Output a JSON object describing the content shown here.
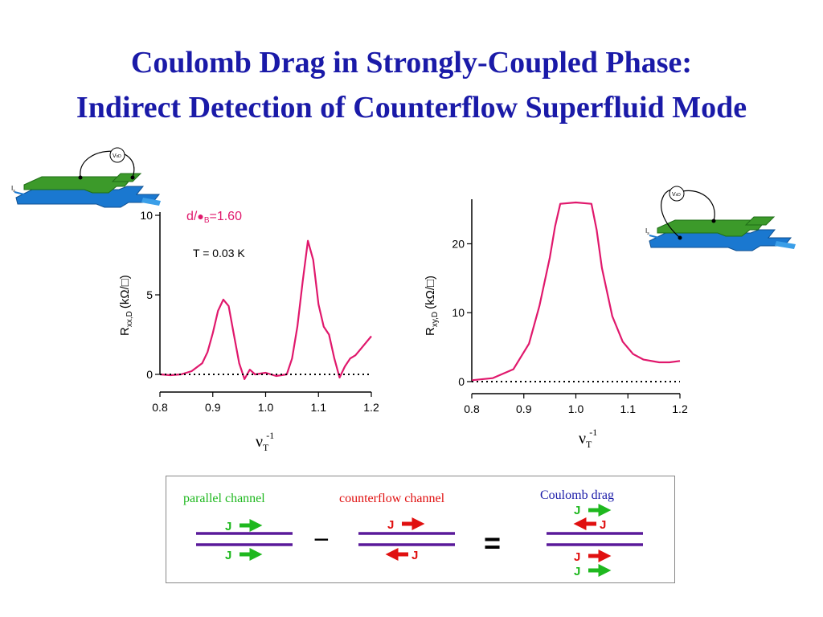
{
  "slide": {
    "title_line1": "Coulomb Drag in Strongly-Coupled Phase:",
    "title_line2": "Indirect Detection of Counterflow Superfluid Mode"
  },
  "device_labels": {
    "current": "I",
    "current_sub": "s",
    "voltage": "V",
    "voltage_sub": "xD"
  },
  "plot_left": {
    "ylabel_R": "R",
    "ylabel_sub": "xx,D",
    "ylabel_unit": "(kΩ/□)",
    "xlabel_nu": "ν",
    "xlabel_sub": "T",
    "xlabel_sup": "-1",
    "annotation_d": "d/",
    "annotation_dot": "●",
    "annotation_sub": "B",
    "annotation_val": "=1.60",
    "annotation_T": "T = 0.03 K"
  },
  "plot_right": {
    "ylabel_R": "R",
    "ylabel_sub": "xy,D",
    "ylabel_unit": "(kΩ/□)",
    "xlabel_nu": "ν",
    "xlabel_sub": "T",
    "xlabel_sup": "-1"
  },
  "chart_data": [
    {
      "type": "line",
      "xlabel": "νT-1",
      "ylabel": "Rxx,D (kΩ/□)",
      "xlim": [
        0.8,
        1.2
      ],
      "ylim": [
        0,
        10
      ],
      "xticks": [
        "0.8",
        "0.9",
        "1.0",
        "1.1",
        "1.2"
      ],
      "yticks": [
        "0",
        "5",
        "10"
      ],
      "series": [
        {
          "color": "#e0186c",
          "x": [
            0.8,
            0.82,
            0.84,
            0.86,
            0.88,
            0.89,
            0.9,
            0.91,
            0.92,
            0.93,
            0.94,
            0.95,
            0.96,
            0.97,
            0.98,
            1.0,
            1.02,
            1.04,
            1.05,
            1.06,
            1.07,
            1.08,
            1.09,
            1.1,
            1.11,
            1.12,
            1.13,
            1.14,
            1.15,
            1.16,
            1.17,
            1.18,
            1.19,
            1.2
          ],
          "y": [
            0.0,
            -0.05,
            0.0,
            0.2,
            0.7,
            1.4,
            2.6,
            4.0,
            4.7,
            4.3,
            2.5,
            0.7,
            -0.3,
            0.3,
            0.0,
            0.1,
            -0.1,
            0.0,
            1.0,
            3.0,
            5.8,
            8.4,
            7.2,
            4.4,
            3.0,
            2.5,
            1.0,
            -0.2,
            0.5,
            1.0,
            1.2,
            1.6,
            2.0,
            2.4
          ]
        },
        {
          "name": "",
          "style": "dotted",
          "color": "#000000",
          "x": [
            0.8,
            1.2
          ],
          "y": [
            0,
            0
          ]
        }
      ]
    },
    {
      "type": "line",
      "xlabel": "νT-1",
      "ylabel": "Rxy,D (kΩ/□)",
      "xlim": [
        0.8,
        1.2
      ],
      "ylim": [
        0,
        26
      ],
      "xticks": [
        "0.8",
        "0.9",
        "1.0",
        "1.1",
        "1.2"
      ],
      "yticks": [
        "0",
        "10",
        "20"
      ],
      "series": [
        {
          "color": "#e0186c",
          "x": [
            0.8,
            0.84,
            0.88,
            0.91,
            0.93,
            0.95,
            0.96,
            0.97,
            1.0,
            1.03,
            1.04,
            1.05,
            1.07,
            1.09,
            1.11,
            1.13,
            1.16,
            1.18,
            1.2
          ],
          "y": [
            0.2,
            0.5,
            1.8,
            5.5,
            11.0,
            18.0,
            22.5,
            25.8,
            26.0,
            25.8,
            22.0,
            16.5,
            9.5,
            5.8,
            4.0,
            3.2,
            2.8,
            2.8,
            3.0
          ]
        },
        {
          "name": "",
          "style": "dotted",
          "color": "#000000",
          "x": [
            0.8,
            1.2
          ],
          "y": [
            0,
            0
          ]
        }
      ]
    }
  ],
  "diagram": {
    "parallel_label": "parallel channel",
    "counterflow_label": "counterflow channel",
    "drag_label": "Coulomb drag",
    "minus": "−",
    "equals": "=",
    "J": "J",
    "colors": {
      "parallel": "#1fb81f",
      "counterflow": "#e01010",
      "drag": "#1a1aa8",
      "layer": "#5a1a9a"
    }
  }
}
